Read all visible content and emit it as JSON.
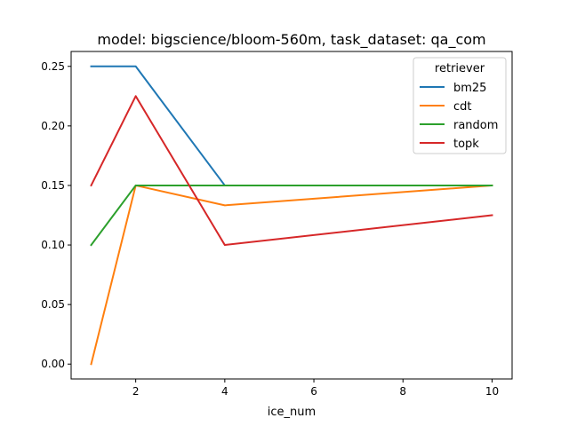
{
  "chart_data": {
    "type": "line",
    "title": "model: bigscience/bloom-560m, task_dataset: qa_com",
    "xlabel": "ice_num",
    "ylabel": "",
    "xlim": [
      0.55,
      10.45
    ],
    "ylim": [
      -0.0125,
      0.2625
    ],
    "xticks": [
      2,
      4,
      6,
      8,
      10
    ],
    "yticks": [
      0.0,
      0.05,
      0.1,
      0.15,
      0.2,
      0.25
    ],
    "ytick_labels": [
      "0.00",
      "0.05",
      "0.10",
      "0.15",
      "0.20",
      "0.25"
    ],
    "grid": false,
    "legend": {
      "title": "retriever",
      "placement": "top-right"
    },
    "x": [
      1,
      2,
      4,
      10
    ],
    "series": [
      {
        "name": "bm25",
        "color": "#1f77b4",
        "values": [
          0.25,
          0.25,
          0.15,
          0.15
        ]
      },
      {
        "name": "cdt",
        "color": "#ff7f0e",
        "values": [
          0.0,
          0.15,
          0.1333,
          0.15
        ]
      },
      {
        "name": "random",
        "color": "#2ca02c",
        "values": [
          0.1,
          0.15,
          0.15,
          0.15
        ]
      },
      {
        "name": "topk",
        "color": "#d62728",
        "values": [
          0.15,
          0.225,
          0.1,
          0.125
        ]
      }
    ]
  }
}
